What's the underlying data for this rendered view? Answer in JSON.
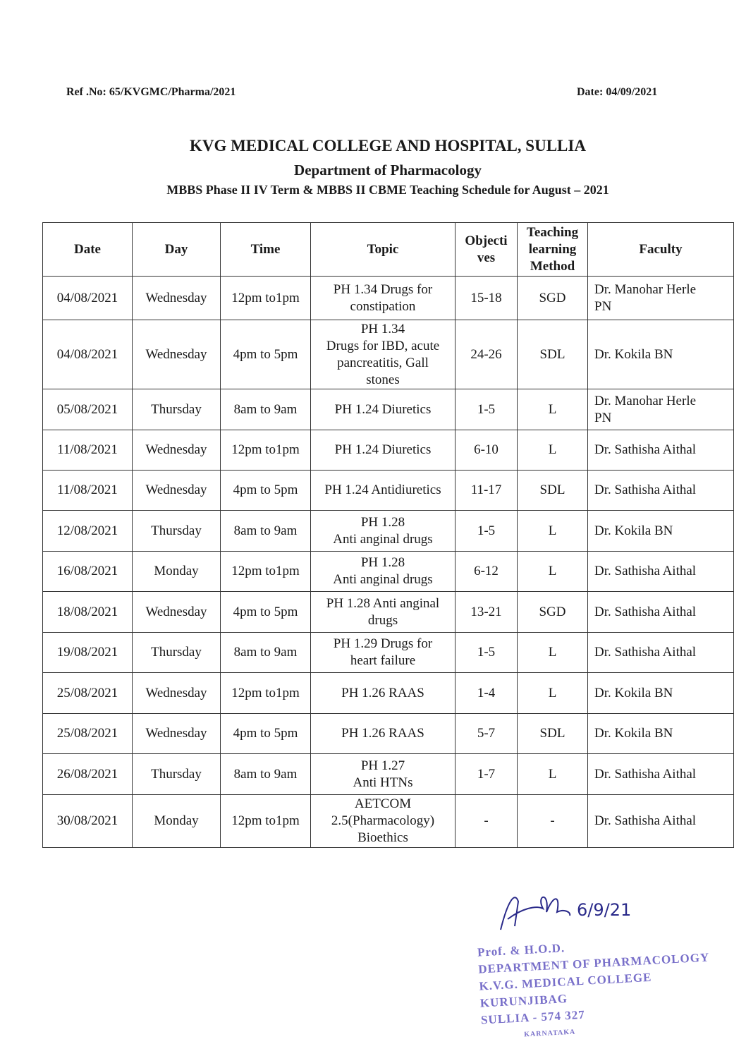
{
  "ref": "Ref .No: 65/KVGMC/Pharma/2021",
  "date": "Date: 04/09/2021",
  "title": "KVG MEDICAL COLLEGE AND HOSPITAL, SULLIA",
  "department": "Department of Pharmacology",
  "subtitle": "MBBS Phase II IV Term & MBBS II CBME Teaching Schedule for August – 2021",
  "headers": [
    "Date",
    "Day",
    "Time",
    "Topic",
    "Objecti\nves",
    "Teaching\nlearning\nMethod",
    "Faculty"
  ],
  "rows": [
    [
      "04/08/2021",
      "Wednesday",
      "12pm to1pm",
      "PH 1.34  Drugs for\nconstipation",
      "15-18",
      "SGD",
      "Dr. Manohar Herle\nPN"
    ],
    [
      "04/08/2021",
      "Wednesday",
      "4pm to 5pm",
      "PH 1.34\nDrugs for IBD, acute\npancreatitis, Gall\nstones",
      "24-26",
      "SDL",
      "Dr. Kokila BN"
    ],
    [
      "05/08/2021",
      "Thursday",
      "8am to 9am",
      "PH 1.24 Diuretics",
      "1-5",
      "L",
      "Dr. Manohar Herle\nPN"
    ],
    [
      "11/08/2021",
      "Wednesday",
      "12pm to1pm",
      "PH 1.24 Diuretics",
      "6-10",
      "L",
      "Dr. Sathisha Aithal"
    ],
    [
      "11/08/2021",
      "Wednesday",
      "4pm to 5pm",
      "PH 1.24 Antidiuretics",
      "11-17",
      "SDL",
      "Dr. Sathisha Aithal"
    ],
    [
      "12/08/2021",
      "Thursday",
      "8am to 9am",
      "PH 1.28\nAnti anginal drugs",
      "1-5",
      "L",
      "Dr. Kokila BN"
    ],
    [
      "16/08/2021",
      "Monday",
      "12pm to1pm",
      "PH 1.28\nAnti anginal drugs",
      "6-12",
      "L",
      "Dr. Sathisha Aithal"
    ],
    [
      "18/08/2021",
      "Wednesday",
      "4pm to 5pm",
      "PH 1.28 Anti anginal\ndrugs",
      "13-21",
      "SGD",
      "Dr. Sathisha Aithal"
    ],
    [
      "19/08/2021",
      "Thursday",
      "8am to 9am",
      "PH 1.29 Drugs for\nheart failure",
      "1-5",
      "L",
      "Dr. Sathisha Aithal"
    ],
    [
      "25/08/2021",
      "Wednesday",
      "12pm to1pm",
      "PH 1.26 RAAS",
      "1-4",
      "L",
      "Dr. Kokila BN"
    ],
    [
      "25/08/2021",
      "Wednesday",
      "4pm to 5pm",
      "PH 1.26 RAAS",
      "5-7",
      "SDL",
      "Dr. Kokila BN"
    ],
    [
      "26/08/2021",
      "Thursday",
      "8am to 9am",
      "PH 1.27\nAnti HTNs",
      "1-7",
      "L",
      "Dr. Sathisha Aithal"
    ],
    [
      "30/08/2021",
      "Monday",
      "12pm to1pm",
      "AETCOM\n2.5(Pharmacology)\nBioethics",
      "-",
      "-",
      "Dr. Sathisha Aithal"
    ]
  ],
  "signature": {
    "date": "6/9/21",
    "color": "#2a2a8a"
  },
  "stamp": {
    "lines": [
      "Prof. & H.O.D.",
      "DEPARTMENT OF PHARMACOLOGY",
      "K.V.G. MEDICAL COLLEGE",
      "KURUNJIBAG",
      "SULLIA - 574 327",
      "KARNATAKA"
    ],
    "color": "#4b3fb8"
  }
}
